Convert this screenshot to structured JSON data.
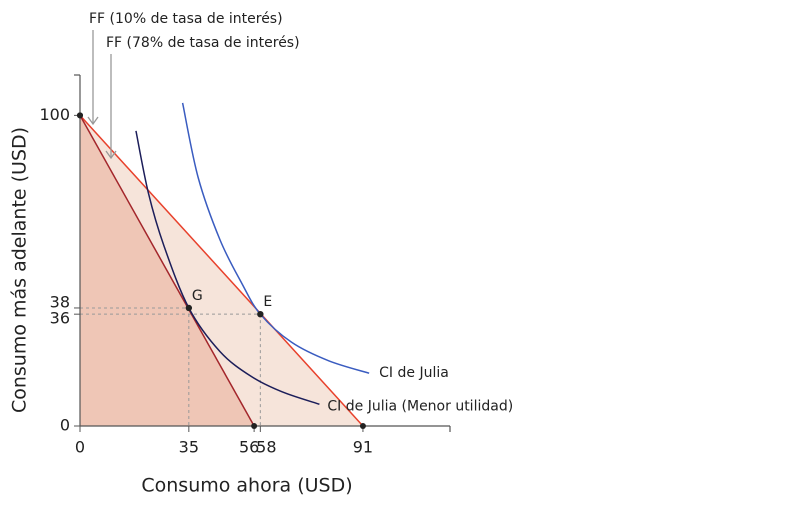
{
  "chart_data": {
    "type": "line",
    "x_label": "Consumo ahora (USD)",
    "y_label": "Consumo más adelante (USD)",
    "xlim": [
      0,
      119
    ],
    "ylim": [
      0,
      113
    ],
    "xticks": [
      0,
      35,
      56,
      58,
      91
    ],
    "yticks": [
      0,
      36,
      38,
      100
    ],
    "series": [
      {
        "name": "FF (10% de tasa de interés)",
        "color": "#e8412c",
        "fill": "#f6e4da",
        "x": [
          0,
          91
        ],
        "values": [
          100,
          0
        ]
      },
      {
        "name": "FF (78% de tasa de interés)",
        "color": "#a3262b",
        "fill": "#efc6b6",
        "x": [
          0,
          56
        ],
        "values": [
          100,
          0
        ]
      },
      {
        "name": "CI de Julia",
        "color": "#3a5cc0",
        "x": [
          33,
          38,
          45,
          52,
          58,
          68,
          80,
          93
        ],
        "values": [
          104,
          80,
          60,
          46,
          36,
          27,
          21,
          17
        ]
      },
      {
        "name": "CI de Julia (Menor utilidad)",
        "color": "#1c1e5a",
        "x": [
          18,
          22,
          27,
          35,
          45,
          55,
          65,
          77
        ],
        "values": [
          95,
          75,
          58,
          38,
          24,
          16,
          11,
          7
        ]
      }
    ],
    "points": [
      {
        "label": "G",
        "x": 35,
        "y": 38
      },
      {
        "label": "E",
        "x": 58,
        "y": 36
      }
    ]
  }
}
